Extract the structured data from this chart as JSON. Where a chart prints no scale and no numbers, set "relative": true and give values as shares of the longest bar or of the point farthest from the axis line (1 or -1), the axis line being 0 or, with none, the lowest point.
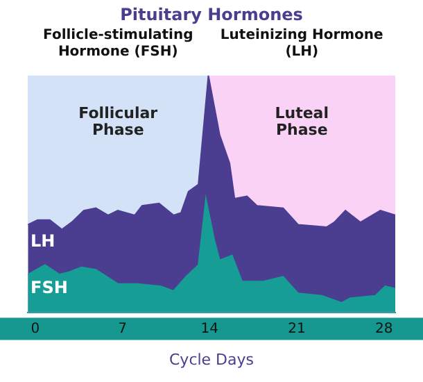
{
  "chart_data": {
    "type": "area",
    "title": "Pituitary Hormones",
    "xlabel": "Cycle Days",
    "relative": true,
    "xlim": [
      -0.6,
      28.9
    ],
    "xticks": [
      0,
      7,
      14,
      21,
      28
    ],
    "annotations": [
      "Follicle-stimulating Hormone (FSH)",
      "Luteinizing Hormone (LH)"
    ],
    "bands": [
      {
        "axis": "x",
        "from": -0.6,
        "to": 13.9,
        "label": "Follicular Phase",
        "color": "#d3e2f7"
      },
      {
        "axis": "x",
        "from": 13.9,
        "to": 28.9,
        "label": "Luteal Phase",
        "color": "#fad2f6"
      }
    ],
    "series": [
      {
        "name": "LH",
        "color": "#4b3d8f",
        "x": [
          -0.58,
          0.19,
          1.17,
          2.14,
          2.92,
          3.9,
          4.87,
          5.85,
          6.63,
          7.99,
          8.58,
          9.94,
          11.1,
          11.7,
          12.3,
          13.1,
          13.9,
          14.8,
          15.6,
          16.0,
          17.0,
          17.8,
          19.9,
          21.1,
          23.4,
          24.0,
          24.9,
          26.1,
          27.7,
          28.9
        ],
        "values": [
          0.37,
          0.39,
          0.39,
          0.35,
          0.38,
          0.43,
          0.44,
          0.41,
          0.43,
          0.41,
          0.45,
          0.46,
          0.41,
          0.42,
          0.51,
          0.54,
          1,
          0.75,
          0.63,
          0.48,
          0.49,
          0.45,
          0.44,
          0.37,
          0.36,
          0.38,
          0.43,
          0.38,
          0.43,
          0.41
        ]
      },
      {
        "name": "FSH",
        "color": "#169e96",
        "x": [
          -0.58,
          0.78,
          1.95,
          2.73,
          3.7,
          4.87,
          6.63,
          8.19,
          10.1,
          11.1,
          12.1,
          13.1,
          13.7,
          14.4,
          14.8,
          15.8,
          16.6,
          18.3,
          19.9,
          21.1,
          23.0,
          24.6,
          25.3,
          27.3,
          28.1,
          28.9
        ],
        "values": [
          0.16,
          0.2,
          0.16,
          0.17,
          0.19,
          0.18,
          0.12,
          0.12,
          0.11,
          0.09,
          0.15,
          0.2,
          0.48,
          0.3,
          0.22,
          0.24,
          0.13,
          0.13,
          0.15,
          0.08,
          0.07,
          0.04,
          0.06,
          0.07,
          0.11,
          0.1
        ]
      }
    ]
  }
}
